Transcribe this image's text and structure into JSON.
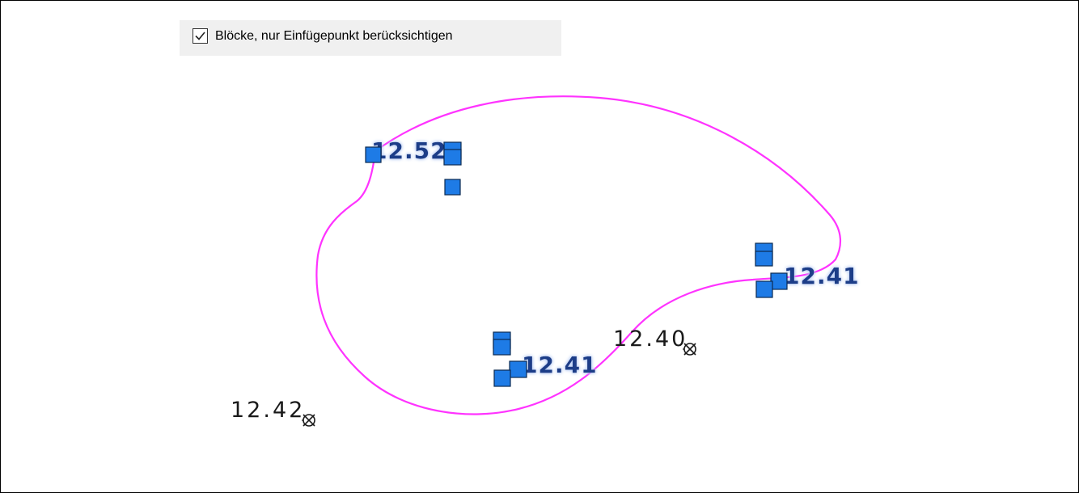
{
  "option": {
    "label": "Blöcke, nur Einfügepunkt berücksichtigen",
    "checked": true
  },
  "colors": {
    "boundary": "#ff33ff",
    "grip_fill": "#1e7be6",
    "grip_stroke": "#0c2b52",
    "selected_text": "#1f3c88",
    "selected_glow": "#b8cdf5",
    "unselected_text": "#1a1a1a",
    "background": "#ffffff",
    "option_bar": "#f0f0f0"
  },
  "selected_labels": {
    "label_1": "12.52",
    "label_2": "12.41",
    "label_3": "12.41"
  },
  "unselected_labels": {
    "label_1": "12.40",
    "label_2": "12.42"
  },
  "point_marker": "cross-circle-icon"
}
